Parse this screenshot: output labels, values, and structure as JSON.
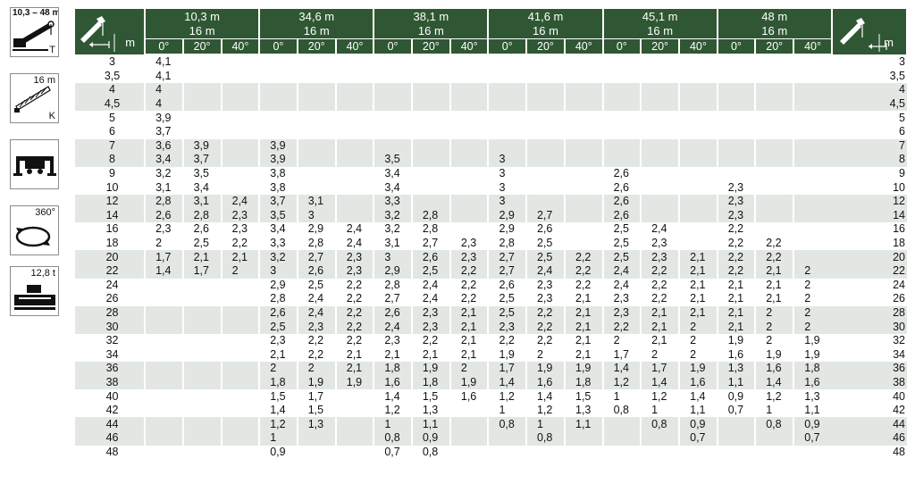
{
  "icons": [
    {
      "name": "telescopic-boom-icon",
      "label": "10,3 – 48 m",
      "sub": "T"
    },
    {
      "name": "jib-icon",
      "label": "16 m",
      "sub": "K"
    },
    {
      "name": "outrigger-icon",
      "label": ""
    },
    {
      "name": "slew-360-icon",
      "label": "360°"
    },
    {
      "name": "counterweight-icon",
      "label": "12,8 t"
    }
  ],
  "table": {
    "radius_unit": "m",
    "angles": [
      "0°",
      "20°",
      "40°"
    ],
    "groups": [
      {
        "boom": "10,3 m",
        "jib": "16 m"
      },
      {
        "boom": "34,6 m",
        "jib": "16 m"
      },
      {
        "boom": "38,1 m",
        "jib": "16 m"
      },
      {
        "boom": "41,6 m",
        "jib": "16 m"
      },
      {
        "boom": "45,1 m",
        "jib": "16 m"
      },
      {
        "boom": "48 m",
        "jib": "16 m"
      }
    ],
    "rows": [
      {
        "r": "3",
        "v": [
          "4,1",
          "",
          "",
          "",
          "",
          "",
          "",
          "",
          "",
          "",
          "",
          "",
          "",
          "",
          "",
          "",
          "",
          ""
        ]
      },
      {
        "r": "3,5",
        "v": [
          "4,1",
          "",
          "",
          "",
          "",
          "",
          "",
          "",
          "",
          "",
          "",
          "",
          "",
          "",
          "",
          "",
          "",
          ""
        ]
      },
      {
        "r": "4",
        "v": [
          "4",
          "",
          "",
          "",
          "",
          "",
          "",
          "",
          "",
          "",
          "",
          "",
          "",
          "",
          "",
          "",
          "",
          ""
        ]
      },
      {
        "r": "4,5",
        "v": [
          "4",
          "",
          "",
          "",
          "",
          "",
          "",
          "",
          "",
          "",
          "",
          "",
          "",
          "",
          "",
          "",
          "",
          ""
        ]
      },
      {
        "r": "5",
        "v": [
          "3,9",
          "",
          "",
          "",
          "",
          "",
          "",
          "",
          "",
          "",
          "",
          "",
          "",
          "",
          "",
          "",
          "",
          ""
        ]
      },
      {
        "r": "6",
        "v": [
          "3,7",
          "",
          "",
          "",
          "",
          "",
          "",
          "",
          "",
          "",
          "",
          "",
          "",
          "",
          "",
          "",
          "",
          ""
        ]
      },
      {
        "r": "7",
        "v": [
          "3,6",
          "3,9",
          "",
          "3,9",
          "",
          "",
          "",
          "",
          "",
          "",
          "",
          "",
          "",
          "",
          "",
          "",
          "",
          ""
        ]
      },
      {
        "r": "8",
        "v": [
          "3,4",
          "3,7",
          "",
          "3,9",
          "",
          "",
          "3,5",
          "",
          "",
          "3",
          "",
          "",
          "",
          "",
          "",
          "",
          "",
          ""
        ]
      },
      {
        "r": "9",
        "v": [
          "3,2",
          "3,5",
          "",
          "3,8",
          "",
          "",
          "3,4",
          "",
          "",
          "3",
          "",
          "",
          "2,6",
          "",
          "",
          "",
          "",
          ""
        ]
      },
      {
        "r": "10",
        "v": [
          "3,1",
          "3,4",
          "",
          "3,8",
          "",
          "",
          "3,4",
          "",
          "",
          "3",
          "",
          "",
          "2,6",
          "",
          "",
          "2,3",
          "",
          ""
        ]
      },
      {
        "r": "12",
        "v": [
          "2,8",
          "3,1",
          "2,4",
          "3,7",
          "3,1",
          "",
          "3,3",
          "",
          "",
          "3",
          "",
          "",
          "2,6",
          "",
          "",
          "2,3",
          "",
          ""
        ]
      },
      {
        "r": "14",
        "v": [
          "2,6",
          "2,8",
          "2,3",
          "3,5",
          "3",
          "",
          "3,2",
          "2,8",
          "",
          "2,9",
          "2,7",
          "",
          "2,6",
          "",
          "",
          "2,3",
          "",
          ""
        ]
      },
      {
        "r": "16",
        "v": [
          "2,3",
          "2,6",
          "2,3",
          "3,4",
          "2,9",
          "2,4",
          "3,2",
          "2,8",
          "",
          "2,9",
          "2,6",
          "",
          "2,5",
          "2,4",
          "",
          "2,2",
          "",
          ""
        ]
      },
      {
        "r": "18",
        "v": [
          "2",
          "2,5",
          "2,2",
          "3,3",
          "2,8",
          "2,4",
          "3,1",
          "2,7",
          "2,3",
          "2,8",
          "2,5",
          "",
          "2,5",
          "2,3",
          "",
          "2,2",
          "2,2",
          ""
        ]
      },
      {
        "r": "20",
        "v": [
          "1,7",
          "2,1",
          "2,1",
          "3,2",
          "2,7",
          "2,3",
          "3",
          "2,6",
          "2,3",
          "2,7",
          "2,5",
          "2,2",
          "2,5",
          "2,3",
          "2,1",
          "2,2",
          "2,2",
          ""
        ]
      },
      {
        "r": "22",
        "v": [
          "1,4",
          "1,7",
          "2",
          "3",
          "2,6",
          "2,3",
          "2,9",
          "2,5",
          "2,2",
          "2,7",
          "2,4",
          "2,2",
          "2,4",
          "2,2",
          "2,1",
          "2,2",
          "2,1",
          "2"
        ]
      },
      {
        "r": "24",
        "v": [
          "",
          "",
          "",
          "2,9",
          "2,5",
          "2,2",
          "2,8",
          "2,4",
          "2,2",
          "2,6",
          "2,3",
          "2,2",
          "2,4",
          "2,2",
          "2,1",
          "2,1",
          "2,1",
          "2"
        ]
      },
      {
        "r": "26",
        "v": [
          "",
          "",
          "",
          "2,8",
          "2,4",
          "2,2",
          "2,7",
          "2,4",
          "2,2",
          "2,5",
          "2,3",
          "2,1",
          "2,3",
          "2,2",
          "2,1",
          "2,1",
          "2,1",
          "2"
        ]
      },
      {
        "r": "28",
        "v": [
          "",
          "",
          "",
          "2,6",
          "2,4",
          "2,2",
          "2,6",
          "2,3",
          "2,1",
          "2,5",
          "2,2",
          "2,1",
          "2,3",
          "2,1",
          "2,1",
          "2,1",
          "2",
          "2"
        ]
      },
      {
        "r": "30",
        "v": [
          "",
          "",
          "",
          "2,5",
          "2,3",
          "2,2",
          "2,4",
          "2,3",
          "2,1",
          "2,3",
          "2,2",
          "2,1",
          "2,2",
          "2,1",
          "2",
          "2,1",
          "2",
          "2"
        ]
      },
      {
        "r": "32",
        "v": [
          "",
          "",
          "",
          "2,3",
          "2,2",
          "2,2",
          "2,3",
          "2,2",
          "2,1",
          "2,2",
          "2,2",
          "2,1",
          "2",
          "2,1",
          "2",
          "1,9",
          "2",
          "1,9"
        ]
      },
      {
        "r": "34",
        "v": [
          "",
          "",
          "",
          "2,1",
          "2,2",
          "2,1",
          "2,1",
          "2,1",
          "2,1",
          "1,9",
          "2",
          "2,1",
          "1,7",
          "2",
          "2",
          "1,6",
          "1,9",
          "1,9"
        ]
      },
      {
        "r": "36",
        "v": [
          "",
          "",
          "",
          "2",
          "2",
          "2,1",
          "1,8",
          "1,9",
          "2",
          "1,7",
          "1,9",
          "1,9",
          "1,4",
          "1,7",
          "1,9",
          "1,3",
          "1,6",
          "1,8"
        ]
      },
      {
        "r": "38",
        "v": [
          "",
          "",
          "",
          "1,8",
          "1,9",
          "1,9",
          "1,6",
          "1,8",
          "1,9",
          "1,4",
          "1,6",
          "1,8",
          "1,2",
          "1,4",
          "1,6",
          "1,1",
          "1,4",
          "1,6"
        ]
      },
      {
        "r": "40",
        "v": [
          "",
          "",
          "",
          "1,5",
          "1,7",
          "",
          "1,4",
          "1,5",
          "1,6",
          "1,2",
          "1,4",
          "1,5",
          "1",
          "1,2",
          "1,4",
          "0,9",
          "1,2",
          "1,3"
        ]
      },
      {
        "r": "42",
        "v": [
          "",
          "",
          "",
          "1,4",
          "1,5",
          "",
          "1,2",
          "1,3",
          "",
          "1",
          "1,2",
          "1,3",
          "0,8",
          "1",
          "1,1",
          "0,7",
          "1",
          "1,1"
        ]
      },
      {
        "r": "44",
        "v": [
          "",
          "",
          "",
          "1,2",
          "1,3",
          "",
          "1",
          "1,1",
          "",
          "0,8",
          "1",
          "1,1",
          "",
          "0,8",
          "0,9",
          "",
          "0,8",
          "0,9"
        ]
      },
      {
        "r": "46",
        "v": [
          "",
          "",
          "",
          "1",
          "",
          "",
          "0,8",
          "0,9",
          "",
          "",
          "0,8",
          "",
          "",
          "",
          "0,7",
          "",
          "",
          "0,7"
        ]
      },
      {
        "r": "48",
        "v": [
          "",
          "",
          "",
          "0,9",
          "",
          "",
          "0,7",
          "0,8",
          "",
          "",
          "",
          "",
          "",
          "",
          "",
          "",
          "",
          ""
        ]
      }
    ]
  },
  "colors": {
    "header": "#2f5734",
    "band": "#e3e7e3"
  }
}
